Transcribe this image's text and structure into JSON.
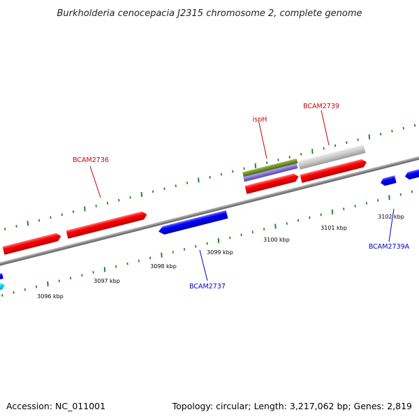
{
  "title": "Burkholderia cenocepacia J2315 chromosome 2, complete genome",
  "footer": {
    "accession": "Accession: NC_011001",
    "stats": "Topology: circular; Length: 3,217,062 bp; Genes: 2,819"
  },
  "colors": {
    "forward_gene": "#ff0000",
    "reverse_gene": "#0000ff",
    "cyan_gene": "#00e5ff",
    "gray_feature": "#c4c4c4",
    "green_feature": "#6e8c2a",
    "purple_feature": "#7f6fd8",
    "backbone": "#888888",
    "ticks": "#1f8a1f",
    "forward_label": "#cc0000",
    "reverse_label": "#0000cc"
  },
  "kbp_ticks": [
    "3096 kbp",
    "3097 kbp",
    "3098 kbp",
    "3099 kbp",
    "3100 kbp",
    "3101 kbp",
    "3102 kbp"
  ],
  "gene_labels": [
    {
      "name": "BCAM2736",
      "strand": "forward"
    },
    {
      "name": "ispH",
      "strand": "forward"
    },
    {
      "name": "BCAM2739",
      "strand": "forward"
    },
    {
      "name": "BCAM2737",
      "strand": "reverse"
    },
    {
      "name": "BCAM2739A",
      "strand": "reverse"
    }
  ],
  "features": [
    {
      "id": "cyan-gene-left",
      "color": "cyan",
      "strand": "reverse"
    },
    {
      "id": "blue-gene-edge",
      "color": "reverse",
      "strand": "reverse"
    },
    {
      "id": "BCAM2735-partial",
      "color": "forward",
      "strand": "forward"
    },
    {
      "id": "BCAM2736",
      "color": "forward",
      "strand": "forward"
    },
    {
      "id": "BCAM2737",
      "color": "reverse",
      "strand": "reverse"
    },
    {
      "id": "ispH",
      "color": "forward",
      "strand": "forward"
    },
    {
      "id": "ispH-green",
      "color": "green",
      "strand": "forward"
    },
    {
      "id": "ispH-purple",
      "color": "purple",
      "strand": "forward"
    },
    {
      "id": "BCAM2739",
      "color": "forward",
      "strand": "forward"
    },
    {
      "id": "BCAM2739-gray",
      "color": "gray",
      "strand": "forward"
    },
    {
      "id": "BCAM2739A",
      "color": "reverse",
      "strand": "reverse"
    },
    {
      "id": "blue-gene-right",
      "color": "reverse",
      "strand": "reverse"
    }
  ]
}
